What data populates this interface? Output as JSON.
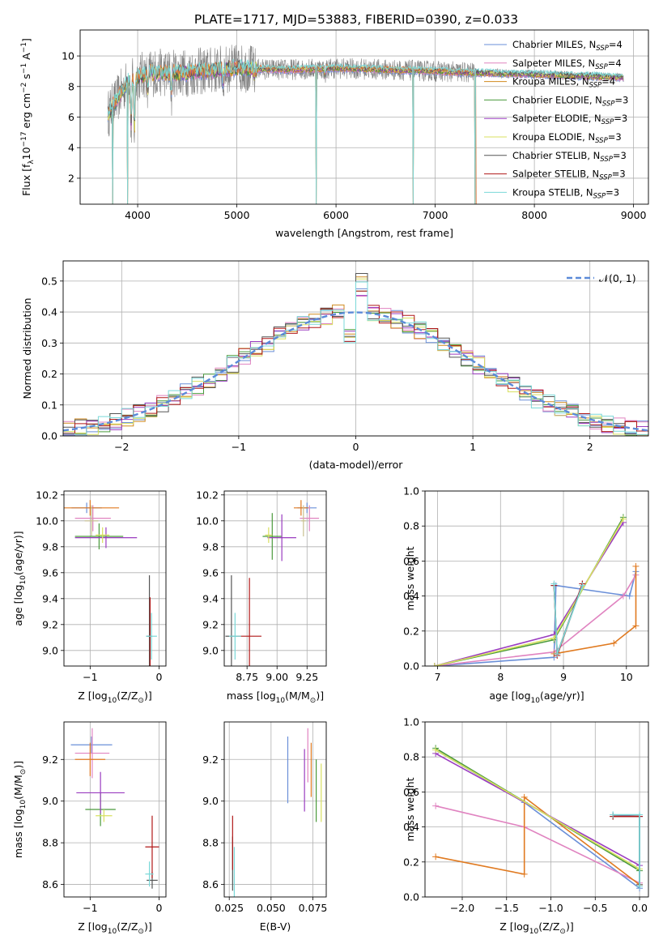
{
  "title": "PLATE=1717, MJD=53883, FIBERID=0390, z=0.033",
  "legend_entries": [
    {
      "label": "Chabrier MILES, N",
      "sub": "SSP",
      "suffix": "=4",
      "color": "#6a8fd8"
    },
    {
      "label": "Salpeter MILES, N",
      "sub": "SSP",
      "suffix": "=4",
      "color": "#e083c0"
    },
    {
      "label": "Kroupa MILES, N",
      "sub": "SSP",
      "suffix": "=4",
      "color": "#d08a1e"
    },
    {
      "label": "Chabrier ELODIE, N",
      "sub": "SSP",
      "suffix": "=3",
      "color": "#4a9a3c"
    },
    {
      "label": "Salpeter ELODIE, N",
      "sub": "SSP",
      "suffix": "=3",
      "color": "#9a3cc0"
    },
    {
      "label": "Kroupa ELODIE, N",
      "sub": "SSP",
      "suffix": "=3",
      "color": "#d8e060"
    },
    {
      "label": "Chabrier STELIB, N",
      "sub": "SSP",
      "suffix": "=3",
      "color": "#555555"
    },
    {
      "label": "Salpeter STELIB, N",
      "sub": "SSP",
      "suffix": "=3",
      "color": "#b01818"
    },
    {
      "label": "Kroupa STELIB, N",
      "sub": "SSP",
      "suffix": "=3",
      "color": "#7ad8d8"
    }
  ],
  "chart_data": [
    {
      "id": "spectrum",
      "type": "line",
      "xlabel": "wavelength [Angstrom, rest frame]",
      "ylabel_parts": [
        "Flux [f",
        "λ",
        "10",
        "−17",
        " erg cm",
        "−2",
        " s",
        "−1",
        " A",
        "−1",
        "]"
      ],
      "xlim": [
        3420,
        9150
      ],
      "ylim": [
        0.3,
        11.7
      ],
      "xticks": [
        4000,
        5000,
        6000,
        7000,
        8000,
        9000
      ],
      "yticks": [
        2,
        4,
        6,
        8,
        10
      ],
      "x_range": [
        3700,
        8900
      ],
      "baseline": [
        [
          3700,
          6.2
        ],
        [
          3900,
          8.3
        ],
        [
          4100,
          8.9
        ],
        [
          4500,
          8.9
        ],
        [
          5000,
          9.2
        ],
        [
          5500,
          9.1
        ],
        [
          6000,
          9.2
        ],
        [
          6500,
          9.1
        ],
        [
          7000,
          9.0
        ],
        [
          7400,
          8.9
        ],
        [
          8000,
          8.8
        ],
        [
          8900,
          8.6
        ]
      ],
      "absorption_dips": [
        [
          3934,
          3.5
        ],
        [
          3968,
          4.0
        ],
        [
          4101,
          1.5
        ],
        [
          4340,
          1.5
        ],
        [
          4861,
          1.0
        ],
        [
          5175,
          0.6
        ],
        [
          5890,
          0.6
        ]
      ],
      "sharp_drops": [
        [
          5800,
          0.3
        ],
        [
          6780,
          0.3
        ],
        [
          7400,
          0.3
        ],
        [
          3900,
          0.3
        ],
        [
          3750,
          0.3
        ]
      ]
    },
    {
      "id": "residual_hist",
      "type": "area",
      "xlabel": "(data-model)/error",
      "ylabel": "Normed distribution",
      "xlim": [
        -2.5,
        2.5
      ],
      "ylim": [
        0,
        0.565
      ],
      "xticks": [
        -2,
        -1,
        0,
        1,
        2
      ],
      "yticks": [
        0.0,
        0.1,
        0.2,
        0.3,
        0.4,
        0.5
      ],
      "legend": "𝒩(0, 1)",
      "bin_width": 0.1
    },
    {
      "id": "age_vs_Z",
      "type": "scatter",
      "xlabel": "Z [log",
      "xlabel_sub": "10",
      "xlabel_rest": "(Z/Z",
      "xlabel_end": ")]",
      "ylabel": "age  [log",
      "ylabel_sub": "10",
      "ylabel_rest": "(age/yr)]",
      "xlim": [
        -1.38,
        0.1
      ],
      "ylim": [
        8.88,
        10.23
      ],
      "xticks": [
        -1,
        0
      ],
      "yticks": [
        9.0,
        9.2,
        9.4,
        9.6,
        9.8,
        10.0,
        10.2
      ],
      "points": [
        {
          "x": -1.05,
          "y": 10.1,
          "xe": 0.22,
          "ye": 0.04,
          "color": "#6a8fd8"
        },
        {
          "x": -0.96,
          "y": 10.02,
          "xe": 0.26,
          "ye": 0.1,
          "color": "#e083c0"
        },
        {
          "x": -1.0,
          "y": 10.1,
          "xe": 0.42,
          "ye": 0.06,
          "color": "#e07a20"
        },
        {
          "x": -0.98,
          "y": 10.0,
          "xe": 0.1,
          "ye": 0.12,
          "color": "#c8c090"
        },
        {
          "x": -0.87,
          "y": 9.88,
          "xe": 0.35,
          "ye": 0.1,
          "color": "#4a9a3c"
        },
        {
          "x": -0.77,
          "y": 9.87,
          "xe": 0.45,
          "ye": 0.08,
          "color": "#9a3cc0"
        },
        {
          "x": -0.82,
          "y": 9.89,
          "xe": 0.1,
          "ye": 0.06,
          "color": "#d8e060"
        },
        {
          "x": -0.14,
          "y": 9.11,
          "xe": 0.04,
          "ye": 0.47,
          "color": "#555555"
        },
        {
          "x": -0.13,
          "y": 9.11,
          "xe": 0.03,
          "ye": 0.3,
          "color": "#b01818"
        },
        {
          "x": -0.11,
          "y": 9.11,
          "xe": 0.08,
          "ye": 0.18,
          "color": "#7ad8d8"
        }
      ]
    },
    {
      "id": "age_vs_mass",
      "type": "scatter",
      "xlabel": "mass [log",
      "xlabel_sub": "10",
      "xlabel_rest": "(M/M",
      "xlabel_end": ")]",
      "xlim": [
        8.56,
        9.41
      ],
      "ylim": [
        8.88,
        10.23
      ],
      "xticks": [
        8.75,
        9.0,
        9.25
      ],
      "xtick_labels": [
        "8.75",
        "9.00",
        "9.25"
      ],
      "yticks": [
        9.0,
        9.2,
        9.4,
        9.6,
        9.8,
        10.0,
        10.2
      ],
      "points": [
        {
          "x": 9.25,
          "y": 10.1,
          "xe": 0.08,
          "ye": 0.04,
          "color": "#6a8fd8"
        },
        {
          "x": 9.27,
          "y": 10.02,
          "xe": 0.08,
          "ye": 0.1,
          "color": "#e083c0"
        },
        {
          "x": 9.2,
          "y": 10.1,
          "xe": 0.06,
          "ye": 0.06,
          "color": "#e07a20"
        },
        {
          "x": 9.22,
          "y": 10.0,
          "xe": 0.02,
          "ye": 0.12,
          "color": "#c8c090"
        },
        {
          "x": 8.96,
          "y": 9.88,
          "xe": 0.08,
          "ye": 0.18,
          "color": "#4a9a3c"
        },
        {
          "x": 9.04,
          "y": 9.87,
          "xe": 0.12,
          "ye": 0.18,
          "color": "#9a3cc0"
        },
        {
          "x": 8.93,
          "y": 9.89,
          "xe": 0.03,
          "ye": 0.06,
          "color": "#d8e060"
        },
        {
          "x": 8.62,
          "y": 9.11,
          "xe": 0.05,
          "ye": 0.47,
          "color": "#555555"
        },
        {
          "x": 8.77,
          "y": 9.11,
          "xe": 0.1,
          "ye": 0.45,
          "color": "#b01818"
        },
        {
          "x": 8.65,
          "y": 9.11,
          "xe": 0.05,
          "ye": 0.18,
          "color": "#7ad8d8"
        }
      ]
    },
    {
      "id": "mass_weight_vs_age",
      "type": "line",
      "xlabel": "age  [log",
      "xlabel_sub": "10",
      "xlabel_rest": "(age/yr)]",
      "ylabel": "mass weight",
      "xlim": [
        6.8,
        10.35
      ],
      "ylim": [
        0,
        1
      ],
      "xticks": [
        7,
        8,
        9,
        10
      ],
      "yticks": [
        0.0,
        0.2,
        0.4,
        0.6,
        0.8,
        1.0
      ],
      "series": [
        {
          "color": "#6a8fd8",
          "points": [
            [
              6.95,
              0.0
            ],
            [
              8.85,
              0.05
            ],
            [
              8.88,
              0.46
            ],
            [
              10.05,
              0.4
            ],
            [
              10.15,
              0.54
            ]
          ]
        },
        {
          "color": "#e083c0",
          "points": [
            [
              6.95,
              0.0
            ],
            [
              8.85,
              0.08
            ],
            [
              9.95,
              0.4
            ],
            [
              10.15,
              0.52
            ]
          ]
        },
        {
          "color": "#e07a20",
          "points": [
            [
              8.85,
              0.07
            ],
            [
              9.8,
              0.13
            ],
            [
              10.15,
              0.23
            ],
            [
              10.15,
              0.57
            ]
          ]
        },
        {
          "color": "#4a9a3c",
          "points": [
            [
              6.95,
              0.0
            ],
            [
              8.85,
              0.15
            ],
            [
              9.95,
              0.85
            ]
          ]
        },
        {
          "color": "#9a3cc0",
          "points": [
            [
              6.95,
              0.0
            ],
            [
              8.85,
              0.18
            ],
            [
              9.95,
              0.82
            ]
          ]
        },
        {
          "color": "#d8e060",
          "points": [
            [
              6.95,
              0.0
            ],
            [
              8.85,
              0.16
            ],
            [
              9.95,
              0.84
            ]
          ]
        },
        {
          "color": "#555555",
          "points": [
            [
              8.85,
              0.46
            ],
            [
              8.9,
              0.07
            ],
            [
              9.3,
              0.47
            ]
          ]
        },
        {
          "color": "#b01818",
          "points": [
            [
              8.85,
              0.46
            ],
            [
              8.9,
              0.06
            ],
            [
              9.3,
              0.47
            ]
          ]
        },
        {
          "color": "#7ad8d8",
          "points": [
            [
              8.85,
              0.47
            ],
            [
              8.9,
              0.07
            ],
            [
              9.3,
              0.46
            ]
          ]
        }
      ]
    },
    {
      "id": "mass_vs_Z",
      "type": "scatter",
      "xlabel": "Z [log",
      "xlabel_sub": "10",
      "xlabel_rest": "(Z/Z",
      "xlabel_end": ")]",
      "ylabel": "mass [log",
      "ylabel_sub": "10",
      "ylabel_rest": "(M/M",
      "ylabel_end": ")]",
      "xlim": [
        -1.38,
        0.1
      ],
      "ylim": [
        8.54,
        9.38
      ],
      "xticks": [
        -1,
        0
      ],
      "yticks": [
        8.6,
        8.8,
        9.0,
        9.2
      ],
      "points": [
        {
          "x": -0.98,
          "y": 9.27,
          "xe": 0.3,
          "ye": 0.04,
          "color": "#6a8fd8"
        },
        {
          "x": -0.97,
          "y": 9.23,
          "xe": 0.25,
          "ye": 0.12,
          "color": "#e083c0"
        },
        {
          "x": -1.0,
          "y": 9.2,
          "xe": 0.22,
          "ye": 0.08,
          "color": "#e07a20"
        },
        {
          "x": -0.85,
          "y": 8.96,
          "xe": 0.22,
          "ye": 0.08,
          "color": "#4a9a3c"
        },
        {
          "x": -0.85,
          "y": 9.04,
          "xe": 0.35,
          "ye": 0.1,
          "color": "#9a3cc0"
        },
        {
          "x": -0.8,
          "y": 8.93,
          "xe": 0.12,
          "ye": 0.03,
          "color": "#d8e060"
        },
        {
          "x": -0.1,
          "y": 8.62,
          "xe": 0.08,
          "ye": 0.04,
          "color": "#555555"
        },
        {
          "x": -0.1,
          "y": 8.78,
          "xe": 0.1,
          "ye": 0.15,
          "color": "#b01818"
        },
        {
          "x": -0.14,
          "y": 8.65,
          "xe": 0.06,
          "ye": 0.06,
          "color": "#7ad8d8"
        }
      ]
    },
    {
      "id": "mass_vs_EBV",
      "type": "scatter",
      "xlabel": "E(B-V)",
      "xlim": [
        0.022,
        0.083
      ],
      "ylim": [
        8.54,
        9.38
      ],
      "xticks": [
        0.025,
        0.05,
        0.075
      ],
      "xtick_labels": [
        "0.025",
        "0.050",
        "0.075"
      ],
      "yticks": [
        8.6,
        8.8,
        9.0,
        9.2
      ],
      "points": [
        {
          "x": 0.06,
          "y": 9.15,
          "ye": 0.16,
          "color": "#6a8fd8"
        },
        {
          "x": 0.072,
          "y": 9.22,
          "ye": 0.13,
          "color": "#e083c0"
        },
        {
          "x": 0.074,
          "y": 9.15,
          "ye": 0.13,
          "color": "#e07a20"
        },
        {
          "x": 0.077,
          "y": 9.05,
          "ye": 0.15,
          "color": "#4a9a3c"
        },
        {
          "x": 0.07,
          "y": 9.1,
          "ye": 0.15,
          "color": "#9a3cc0"
        },
        {
          "x": 0.08,
          "y": 9.04,
          "ye": 0.14,
          "color": "#d8e060"
        },
        {
          "x": 0.027,
          "y": 8.7,
          "ye": 0.13,
          "color": "#555555"
        },
        {
          "x": 0.027,
          "y": 8.8,
          "ye": 0.13,
          "color": "#b01818"
        },
        {
          "x": 0.028,
          "y": 8.66,
          "ye": 0.12,
          "color": "#7ad8d8"
        }
      ]
    },
    {
      "id": "mass_weight_vs_Z",
      "type": "line",
      "xlabel": "Z [log",
      "xlabel_sub": "10",
      "xlabel_rest": "(Z/Z",
      "xlabel_end": ")]",
      "ylabel": "mass weight",
      "xlim": [
        -2.42,
        0.1
      ],
      "ylim": [
        0,
        1
      ],
      "xticks": [
        -2.0,
        -1.5,
        -1.0,
        -0.5,
        0.0
      ],
      "xtick_labels": [
        "−2.0",
        "−1.5",
        "−1.0",
        "−0.5",
        "0.0"
      ],
      "yticks": [
        0.0,
        0.2,
        0.4,
        0.6,
        0.8,
        1.0
      ],
      "series": [
        {
          "color": "#6a8fd8",
          "points": [
            [
              -2.3,
              0.84
            ],
            [
              -1.3,
              0.54
            ],
            [
              0.0,
              0.05
            ],
            [
              0.0,
              0.46
            ],
            [
              -0.3,
              0.47
            ]
          ]
        },
        {
          "color": "#e083c0",
          "points": [
            [
              -2.3,
              0.52
            ],
            [
              -1.3,
              0.4
            ],
            [
              0.0,
              0.08
            ]
          ]
        },
        {
          "color": "#e07a20",
          "points": [
            [
              -2.3,
              0.23
            ],
            [
              -1.3,
              0.13
            ],
            [
              -1.3,
              0.57
            ],
            [
              0.0,
              0.07
            ]
          ]
        },
        {
          "color": "#4a9a3c",
          "points": [
            [
              -2.3,
              0.85
            ],
            [
              0.0,
              0.15
            ]
          ]
        },
        {
          "color": "#9a3cc0",
          "points": [
            [
              -2.3,
              0.82
            ],
            [
              0.0,
              0.18
            ]
          ]
        },
        {
          "color": "#d8e060",
          "points": [
            [
              -2.3,
              0.84
            ],
            [
              0.0,
              0.16
            ]
          ]
        },
        {
          "color": "#555555",
          "points": [
            [
              -0.3,
              0.46
            ],
            [
              0.0,
              0.46
            ],
            [
              0.0,
              0.07
            ]
          ]
        },
        {
          "color": "#b01818",
          "points": [
            [
              -0.3,
              0.46
            ],
            [
              0.0,
              0.46
            ]
          ]
        },
        {
          "color": "#7ad8d8",
          "points": [
            [
              -0.3,
              0.47
            ],
            [
              0.0,
              0.47
            ],
            [
              0.0,
              0.06
            ]
          ]
        }
      ]
    }
  ]
}
